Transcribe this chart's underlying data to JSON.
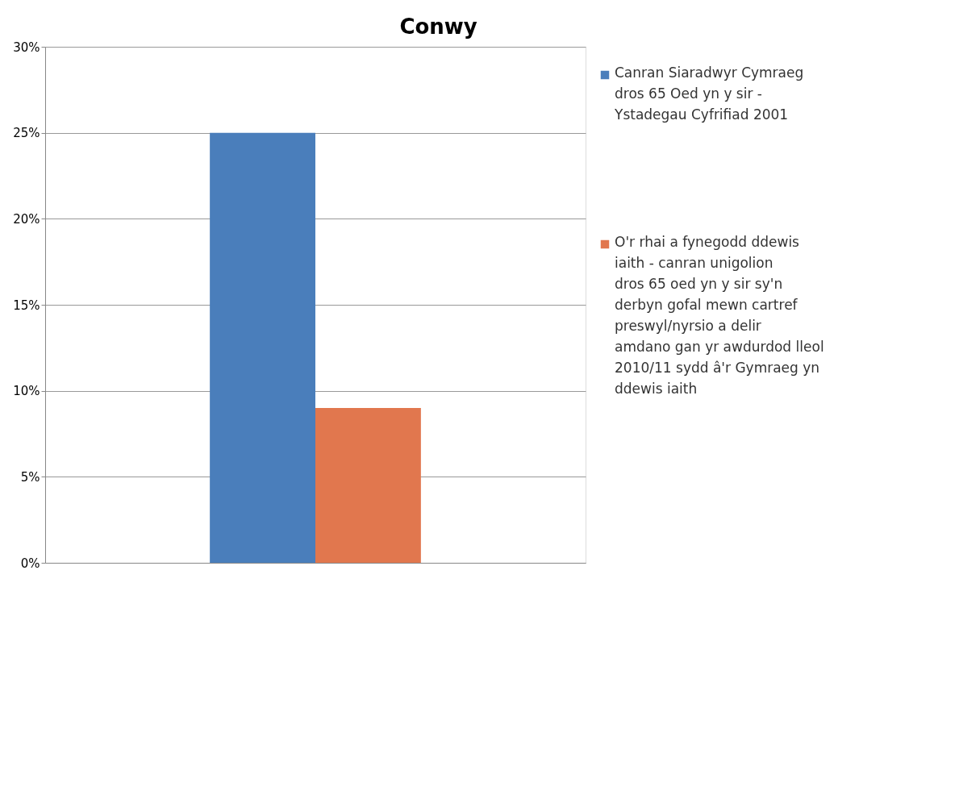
{
  "chart_data": {
    "type": "bar",
    "title": "Conwy",
    "categories": [
      null
    ],
    "series": [
      {
        "name": "Canran Siaradwyr Cymraeg dros 65 Oed yn y sir - Ystadegau Cyfrifiad 2001",
        "color": "#4a7ebb",
        "values": [
          25
        ]
      },
      {
        "name": "O'r rhai a fynegodd ddewis iaith - canran unigolion dros 65 oed yn y sir sy'n derbyn gofal mewn cartref preswyl/nyrsio a delir amdano gan yr awdurdod lleol 2010/11 sydd â'r Gymraeg yn ddewis iaith",
        "color": "#e1774e",
        "values": [
          9
        ]
      }
    ],
    "ylim": [
      0,
      30
    ],
    "yticks": [
      {
        "value": 0,
        "label": "0%"
      },
      {
        "value": 5,
        "label": "5%"
      },
      {
        "value": 10,
        "label": "10%"
      },
      {
        "value": 15,
        "label": "15%"
      },
      {
        "value": 20,
        "label": "20%"
      },
      {
        "value": 25,
        "label": "25%"
      },
      {
        "value": 30,
        "label": "30%"
      }
    ],
    "grid": "y",
    "legend": "right",
    "tick_labels": "y"
  }
}
